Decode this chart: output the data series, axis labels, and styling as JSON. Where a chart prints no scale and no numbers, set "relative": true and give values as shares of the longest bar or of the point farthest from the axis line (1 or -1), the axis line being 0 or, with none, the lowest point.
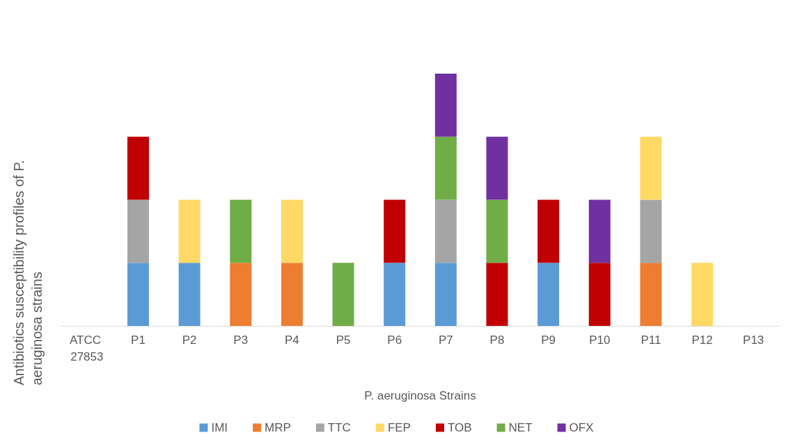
{
  "chart_data": {
    "type": "bar",
    "stacked": true,
    "relative": true,
    "xlabel": "P. aeruginosa Strains",
    "ylabel": "Antibiotics susceptibility profiles of P. aeruginosa strains",
    "categories": [
      "ATCC 27853",
      "P1",
      "P2",
      "P3",
      "P4",
      "P5",
      "P6",
      "P7",
      "P8",
      "P9",
      "P10",
      "P11",
      "P12",
      "P13"
    ],
    "series": [
      {
        "name": "IMI",
        "color": "#5b9bd5",
        "values": [
          null,
          0.25,
          0.25,
          null,
          null,
          null,
          0.25,
          0.25,
          null,
          0.25,
          null,
          null,
          null,
          null
        ]
      },
      {
        "name": "MRP",
        "color": "#ed7d31",
        "values": [
          null,
          null,
          null,
          0.25,
          0.25,
          null,
          null,
          null,
          null,
          null,
          null,
          0.25,
          null,
          null
        ]
      },
      {
        "name": "TTC",
        "color": "#a5a5a5",
        "values": [
          null,
          0.25,
          null,
          null,
          null,
          null,
          null,
          0.25,
          null,
          null,
          null,
          0.25,
          null,
          null
        ]
      },
      {
        "name": "FEP",
        "color": "#ffd966",
        "values": [
          null,
          null,
          0.25,
          null,
          0.25,
          null,
          null,
          null,
          null,
          null,
          null,
          0.25,
          0.25,
          null
        ]
      },
      {
        "name": "TOB",
        "color": "#c00000",
        "values": [
          null,
          0.25,
          null,
          null,
          null,
          null,
          0.25,
          null,
          0.25,
          0.25,
          0.25,
          null,
          null,
          null
        ]
      },
      {
        "name": "NET",
        "color": "#70ad47",
        "values": [
          null,
          null,
          null,
          0.25,
          null,
          0.25,
          null,
          0.25,
          0.25,
          null,
          null,
          null,
          null,
          null
        ]
      },
      {
        "name": "OFX",
        "color": "#7030a0",
        "values": [
          null,
          null,
          null,
          null,
          null,
          null,
          null,
          0.25,
          0.25,
          null,
          0.25,
          null,
          null,
          null
        ]
      }
    ],
    "legend": "bottom"
  }
}
